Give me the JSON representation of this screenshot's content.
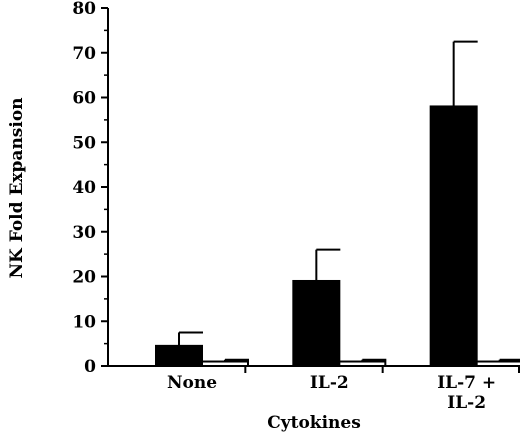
{
  "chart_data": {
    "type": "bar",
    "title": "",
    "xlabel": "Cytokines",
    "ylabel": "NK Fold Expansion",
    "ylim": [
      0,
      80
    ],
    "yticks": [
      "0",
      "10",
      "20",
      "30",
      "40",
      "50",
      "60",
      "70",
      "80"
    ],
    "yticks_values": [
      0,
      10,
      20,
      30,
      40,
      50,
      60,
      70,
      80
    ],
    "categories": [
      {
        "lines": [
          "None"
        ]
      },
      {
        "lines": [
          "IL-2"
        ]
      },
      {
        "lines": [
          "IL-7 +",
          "IL-2"
        ]
      }
    ],
    "series": [
      {
        "fill": "#000000",
        "values": [
          4.5,
          19,
          58
        ],
        "errors": [
          3,
          7,
          14.5
        ]
      },
      {
        "fill": "#ffffff",
        "values": [
          1,
          1,
          1
        ],
        "errors": [
          0.4,
          0.4,
          0.4
        ]
      }
    ],
    "grid": false,
    "legend": "none"
  }
}
